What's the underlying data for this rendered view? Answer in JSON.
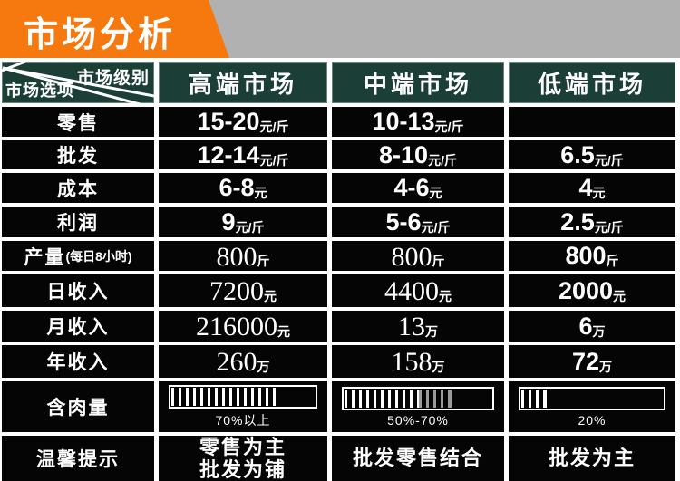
{
  "title": {
    "text": "市场分析"
  },
  "colors": {
    "banner_orange": "#f6790f",
    "banner_gray": "#b1b1b1",
    "header_teal": "#1b3f36",
    "cell_black": "#050505",
    "bar_stripe_white": "#ffffff",
    "bar_stripe_gray": "#9a9a9a"
  },
  "table": {
    "corner": {
      "top": "市场级别",
      "bottom": "市场选项"
    },
    "columns": [
      "高端市场",
      "中端市场",
      "低端市场"
    ],
    "rows": [
      {
        "label": "零售",
        "suffix": "",
        "cells": [
          {
            "value": "15-20",
            "unit": "元/斤"
          },
          {
            "value": "10-13",
            "unit": "元/斤"
          },
          {
            "value": "",
            "unit": ""
          }
        ]
      },
      {
        "label": "批发",
        "suffix": "",
        "cells": [
          {
            "value": "12-14",
            "unit": "元/斤"
          },
          {
            "value": "8-10",
            "unit": "元/斤"
          },
          {
            "value": "6.5",
            "unit": "元/斤"
          }
        ]
      },
      {
        "label": "成本",
        "suffix": "",
        "cells": [
          {
            "value": "6-8",
            "unit": "元"
          },
          {
            "value": "4-6",
            "unit": "元"
          },
          {
            "value": "4",
            "unit": "元"
          }
        ]
      },
      {
        "label": "利润",
        "suffix": "",
        "cells": [
          {
            "value": "9",
            "unit": "元/斤"
          },
          {
            "value": "5-6",
            "unit": "元/斤"
          },
          {
            "value": "2.5",
            "unit": "元/斤"
          }
        ]
      },
      {
        "label": "产量",
        "suffix": "(每日8小时)",
        "cells": [
          {
            "value": "800",
            "unit": "斤"
          },
          {
            "value": "800",
            "unit": "斤"
          },
          {
            "value": "800",
            "unit": "斤"
          }
        ]
      },
      {
        "label": "日收入",
        "suffix": "",
        "cells": [
          {
            "value": "7200",
            "unit": "元"
          },
          {
            "value": "4400",
            "unit": "元"
          },
          {
            "value": "2000",
            "unit": "元"
          }
        ]
      },
      {
        "label": "月收入",
        "suffix": "",
        "cells": [
          {
            "value": "216000",
            "unit": "元"
          },
          {
            "value": "13",
            "unit": "万"
          },
          {
            "value": "6",
            "unit": "万"
          }
        ]
      },
      {
        "label": "年收入",
        "suffix": "",
        "cells": [
          {
            "value": "260",
            "unit": "万"
          },
          {
            "value": "158",
            "unit": "万"
          },
          {
            "value": "72",
            "unit": "万"
          }
        ]
      }
    ],
    "meat_row": {
      "label": "含肉量",
      "bars": [
        {
          "segments": [
            {
              "pct": 72,
              "tone": "white"
            }
          ],
          "label": "70%以上"
        },
        {
          "segments": [
            {
              "pct": 50,
              "tone": "white"
            },
            {
              "pct": 22,
              "tone": "gray"
            }
          ],
          "label": "50%-70%"
        },
        {
          "segments": [
            {
              "pct": 17,
              "tone": "white"
            }
          ],
          "label": "20%"
        }
      ]
    },
    "tips_row": {
      "label": "温馨提示",
      "cells": [
        {
          "line1": "零售为主",
          "line2": "批发为铺"
        },
        {
          "line1": "批发零售结合",
          "line2": ""
        },
        {
          "line1": "批发为主",
          "line2": ""
        }
      ]
    }
  },
  "chart_data": {
    "type": "table",
    "title": "市场分析",
    "columns": [
      "市场选项",
      "高端市场",
      "中端市场",
      "低端市场"
    ],
    "rows": [
      [
        "零售",
        "15-20元/斤",
        "10-13元/斤",
        ""
      ],
      [
        "批发",
        "12-14元/斤",
        "8-10元/斤",
        "6.5元/斤"
      ],
      [
        "成本",
        "6-8元",
        "4-6元",
        "4元"
      ],
      [
        "利润",
        "9元/斤",
        "5-6元/斤",
        "2.5元/斤"
      ],
      [
        "产量(每日8小时)",
        "800斤",
        "800斤",
        "800斤"
      ],
      [
        "日收入",
        "7200元",
        "4400元",
        "2000元"
      ],
      [
        "月收入",
        "216000元",
        "13万",
        "6万"
      ],
      [
        "年收入",
        "260万",
        "158万",
        "72万"
      ],
      [
        "含肉量",
        "70%以上",
        "50%-70%",
        "20%"
      ],
      [
        "温馨提示",
        "零售为主 批发为铺",
        "批发零售结合",
        "批发为主"
      ]
    ],
    "meat_content_bar_fill_pct": [
      72,
      72,
      17
    ],
    "meat_content_bar_note": "中端市场条形图50%-72%段为灰色条纹"
  }
}
